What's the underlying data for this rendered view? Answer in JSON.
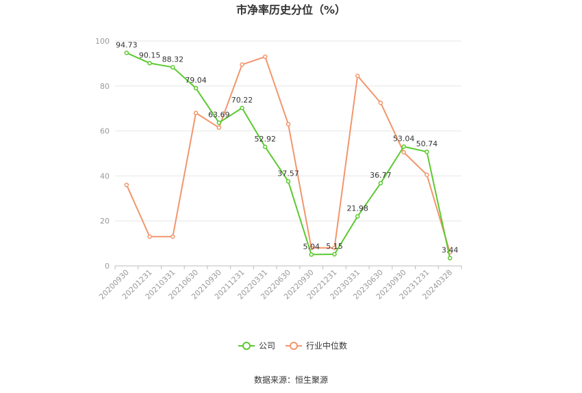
{
  "chart_data": {
    "type": "line",
    "title": "市净率历史分位（%）",
    "categories": [
      "20200930",
      "20201231",
      "20210331",
      "20210630",
      "20210930",
      "20211231",
      "20220331",
      "20220630",
      "20220930",
      "20221231",
      "20230331",
      "20230630",
      "20230930",
      "20231231",
      "20240328"
    ],
    "series": [
      {
        "name": "公司",
        "values": [
          94.73,
          90.15,
          88.32,
          79.04,
          63.69,
          70.22,
          52.92,
          37.57,
          5.04,
          5.15,
          21.98,
          36.77,
          53.04,
          50.74,
          3.44
        ],
        "labels": [
          "94.73",
          "90.15",
          "88.32",
          "79.04",
          "63.69",
          "70.22",
          "52.92",
          "37.57",
          "5.04",
          "5.15",
          "21.98",
          "36.77",
          "53.04",
          "50.74",
          "3.44"
        ],
        "color": "#5ac92e"
      },
      {
        "name": "行业中位数",
        "values": [
          36,
          13,
          13,
          68,
          61.5,
          89.5,
          93,
          63,
          8,
          8,
          84.5,
          72.5,
          50.5,
          40.5,
          6
        ],
        "color": "#f2956b"
      }
    ],
    "ylim": [
      0,
      100
    ],
    "yticks": [
      "0",
      "20",
      "40",
      "60",
      "80",
      "100"
    ],
    "grid": true,
    "legend_position": "bottom"
  },
  "source": "数据来源：恒生聚源"
}
